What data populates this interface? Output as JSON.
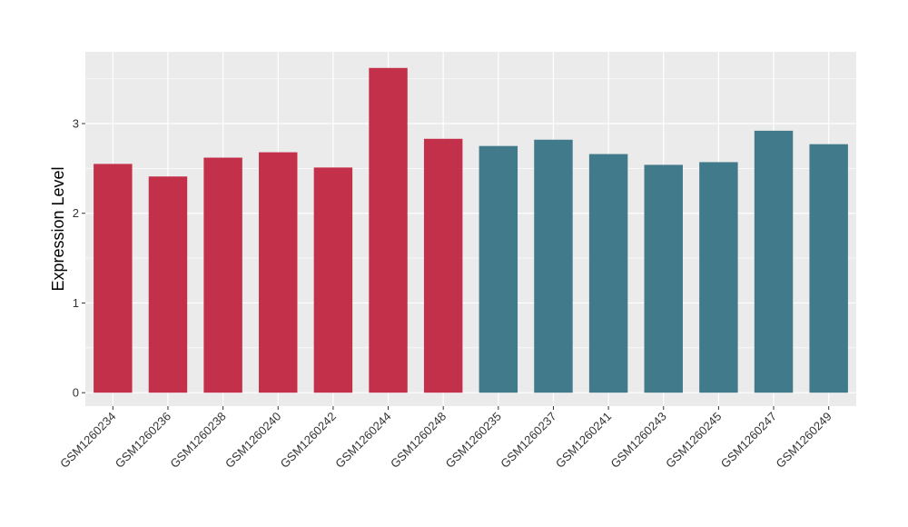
{
  "chart_data": {
    "type": "bar",
    "title": "",
    "xlabel": "",
    "ylabel": "Expression Level",
    "ylim": [
      -0.15,
      3.8
    ],
    "yticks": [
      0,
      1,
      2,
      3
    ],
    "grid": true,
    "categories": [
      "GSM1260234",
      "GSM1260236",
      "GSM1260238",
      "GSM1260240",
      "GSM1260242",
      "GSM1260244",
      "GSM1260248",
      "GSM1260235",
      "GSM1260237",
      "GSM1260241",
      "GSM1260243",
      "GSM1260245",
      "GSM1260247",
      "GSM1260249"
    ],
    "values": [
      2.55,
      2.41,
      2.62,
      2.68,
      2.51,
      3.62,
      2.83,
      2.75,
      2.82,
      2.66,
      2.54,
      2.57,
      2.92,
      2.77
    ],
    "bar_colors": [
      "#c3304a",
      "#c3304a",
      "#c3304a",
      "#c3304a",
      "#c3304a",
      "#c3304a",
      "#c3304a",
      "#417a8b",
      "#417a8b",
      "#417a8b",
      "#417a8b",
      "#417a8b",
      "#417a8b",
      "#417a8b"
    ],
    "panel_background": "#ebebeb",
    "grid_color": "#ffffff"
  }
}
